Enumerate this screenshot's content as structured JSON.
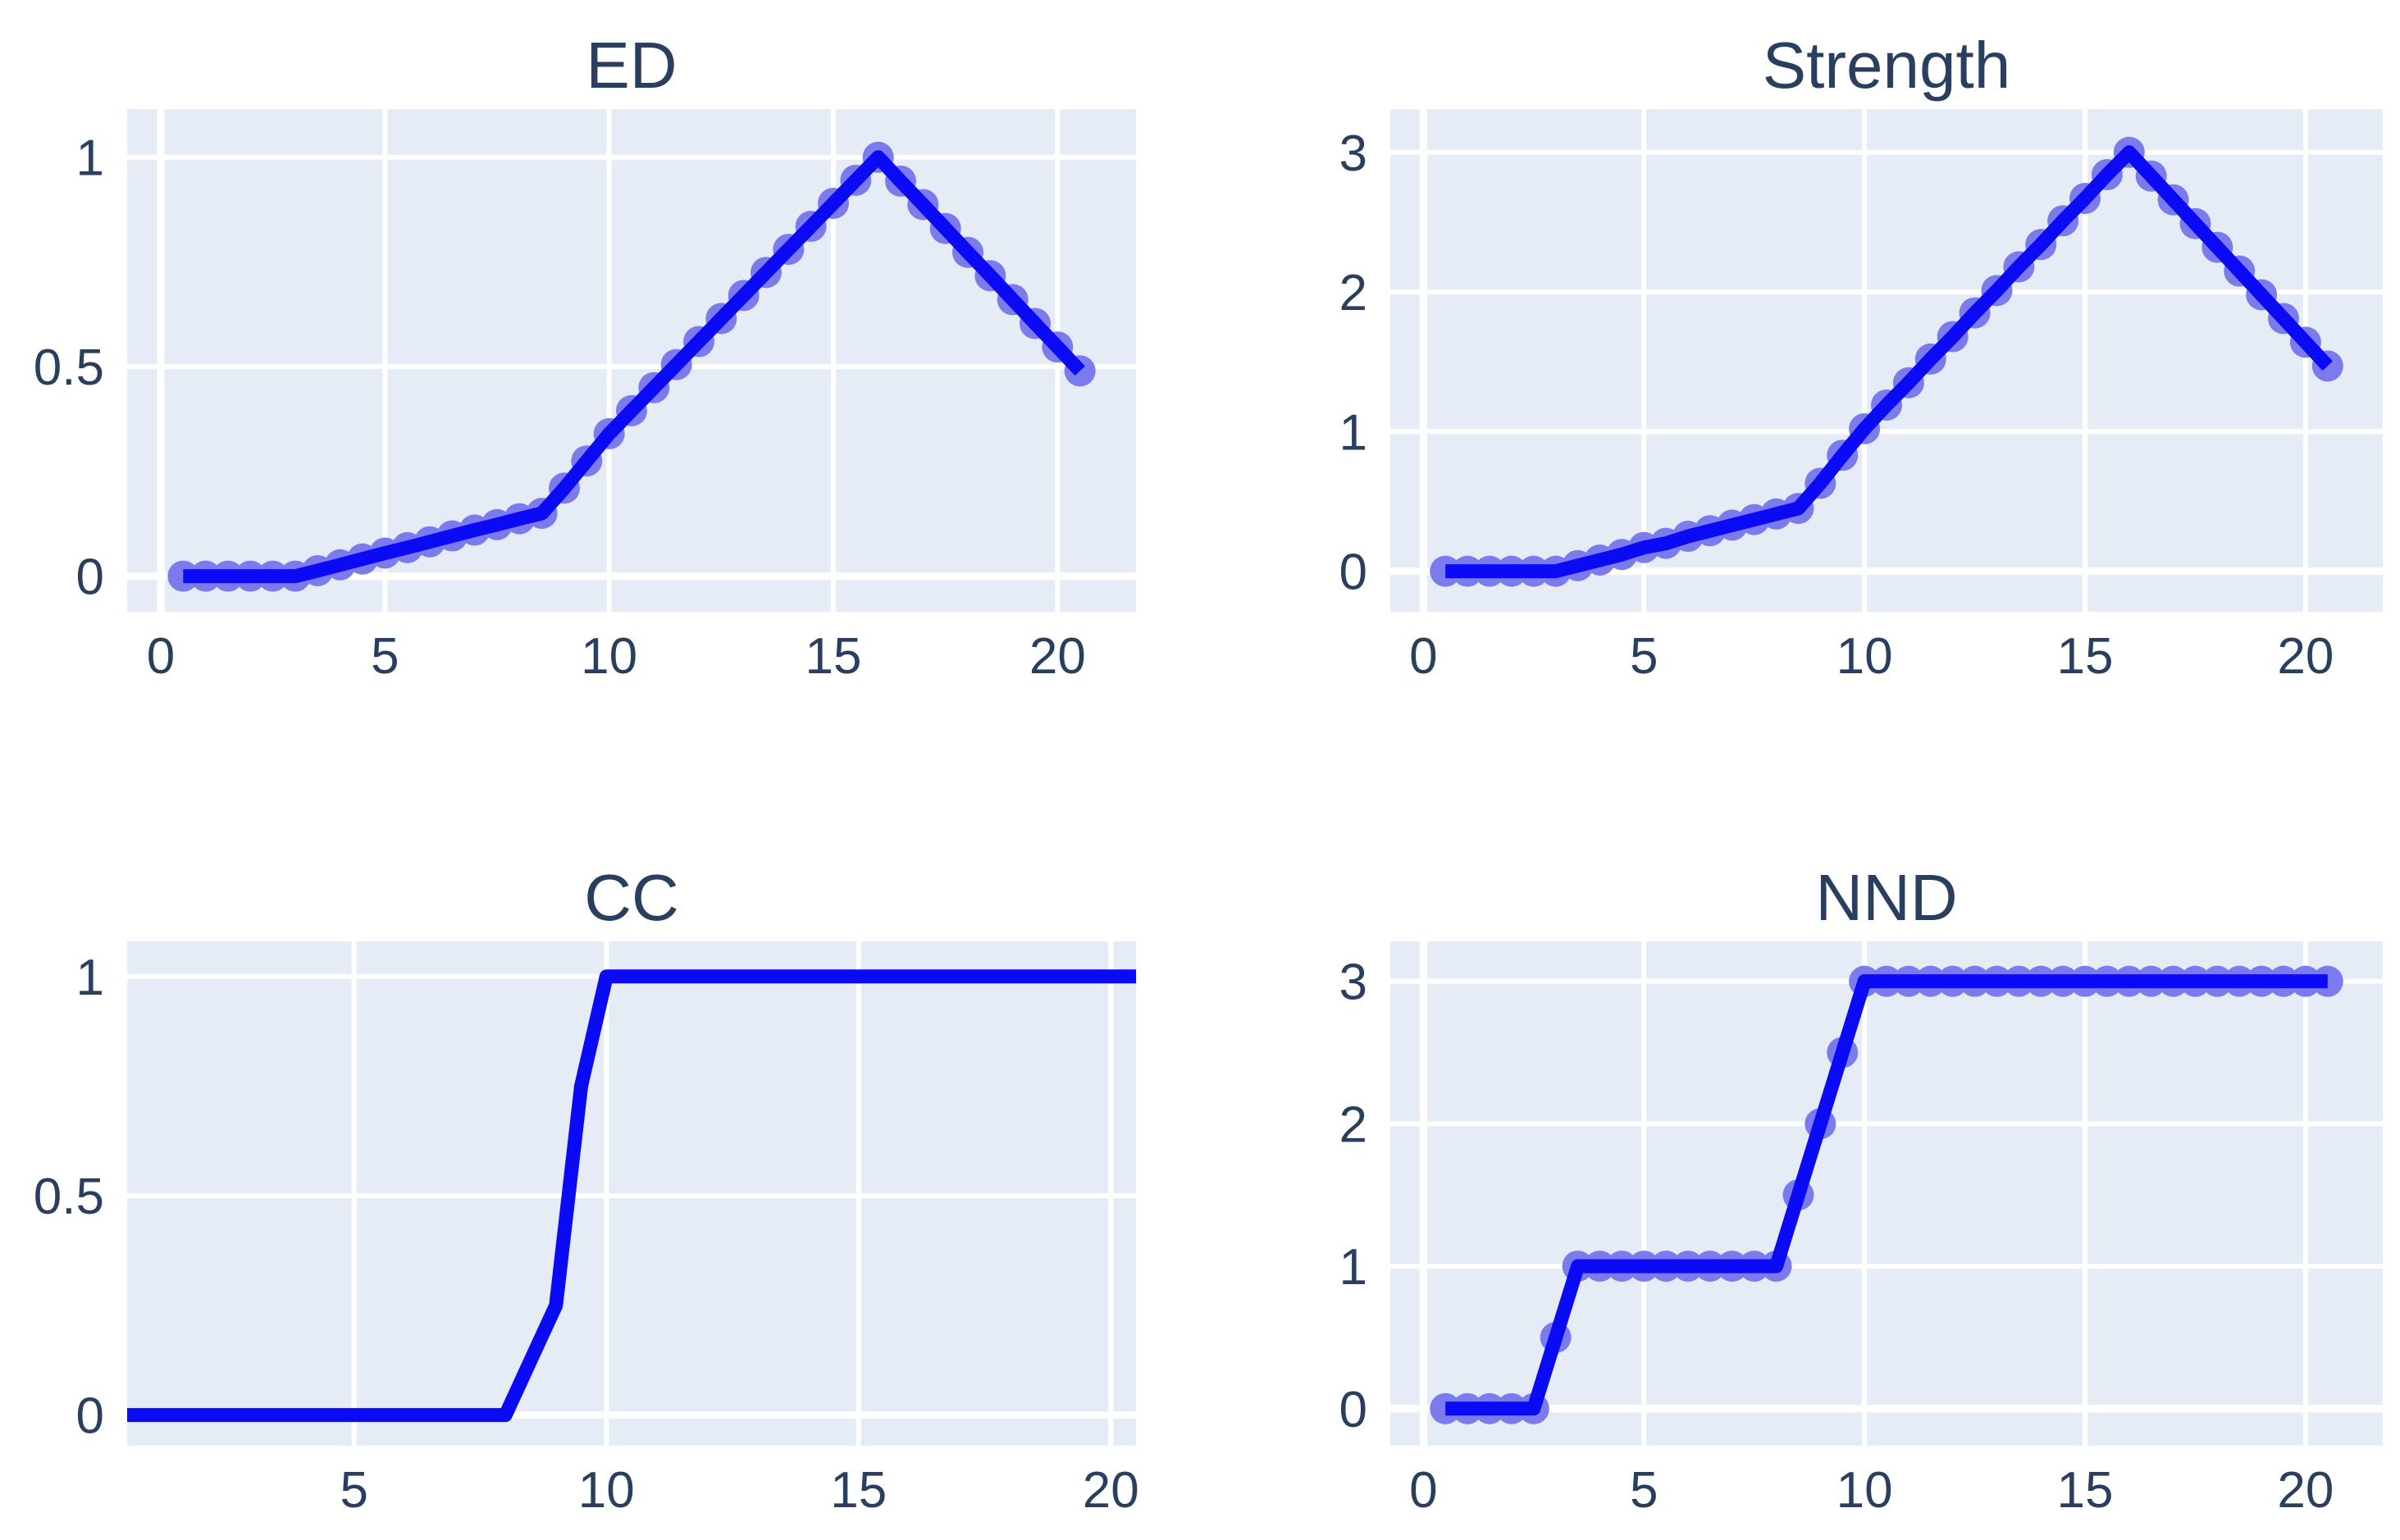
{
  "figure": {
    "background": "#FFFFFF"
  },
  "style": {
    "plot_background": "#E5ECF6",
    "gridline_color": "#FFFFFF",
    "line_color": "#0A0AF5",
    "marker_color": "#7B7BEE",
    "text_color": "#2A3F5F"
  },
  "chart_data": [
    {
      "type": "line",
      "title": "ED",
      "legend": "none",
      "grid": "on",
      "markers": true,
      "x_range": [
        -0.75,
        21.75
      ],
      "y_range": [
        -0.085,
        1.115
      ],
      "x_ticks": [
        0,
        5,
        10,
        15,
        20
      ],
      "x_tick_labels": [
        "0",
        "5",
        "10",
        "15",
        "20"
      ],
      "y_ticks": [
        0,
        0.5,
        1
      ],
      "y_tick_labels": [
        "0",
        "0.5",
        "1"
      ],
      "x": [
        0.5,
        1,
        1.5,
        2,
        2.5,
        3,
        3.5,
        4,
        4.5,
        5,
        5.5,
        6,
        6.5,
        7,
        7.5,
        8,
        8.5,
        9,
        9.5,
        10,
        10.5,
        11,
        11.5,
        12,
        12.5,
        13,
        13.5,
        14,
        14.5,
        15,
        15.5,
        16,
        16.5,
        17,
        17.5,
        18,
        18.5,
        19,
        19.5,
        20,
        20.5
      ],
      "y": [
        0,
        0,
        0,
        0,
        0,
        0,
        0.013,
        0.027,
        0.041,
        0.055,
        0.068,
        0.082,
        0.096,
        0.11,
        0.123,
        0.137,
        0.15,
        0.21,
        0.275,
        0.34,
        0.395,
        0.45,
        0.505,
        0.56,
        0.615,
        0.67,
        0.725,
        0.78,
        0.835,
        0.89,
        0.945,
        1.0,
        0.943,
        0.887,
        0.83,
        0.773,
        0.717,
        0.66,
        0.603,
        0.547,
        0.49
      ]
    },
    {
      "type": "line",
      "title": "Strength",
      "legend": "none",
      "grid": "on",
      "markers": true,
      "x_range": [
        -0.75,
        21.75
      ],
      "y_range": [
        -0.29,
        3.31
      ],
      "x_ticks": [
        0,
        5,
        10,
        15,
        20
      ],
      "x_tick_labels": [
        "0",
        "5",
        "10",
        "15",
        "20"
      ],
      "y_ticks": [
        0,
        1,
        2,
        3
      ],
      "y_tick_labels": [
        "0",
        "1",
        "2",
        "3"
      ],
      "x": [
        0.5,
        1,
        1.5,
        2,
        2.5,
        3,
        3.5,
        4,
        4.5,
        5,
        5.5,
        6,
        6.5,
        7,
        7.5,
        8,
        8.5,
        9,
        9.5,
        10,
        10.5,
        11,
        11.5,
        12,
        12.5,
        13,
        13.5,
        14,
        14.5,
        15,
        15.5,
        16,
        16.5,
        17,
        17.5,
        18,
        18.5,
        19,
        19.5,
        20,
        20.5
      ],
      "y": [
        0,
        0,
        0,
        0,
        0,
        0,
        0.04,
        0.08,
        0.12,
        0.17,
        0.2,
        0.25,
        0.29,
        0.33,
        0.37,
        0.41,
        0.45,
        0.63,
        0.83,
        1.02,
        1.19,
        1.35,
        1.52,
        1.68,
        1.85,
        2.01,
        2.18,
        2.34,
        2.51,
        2.67,
        2.84,
        3.0,
        2.83,
        2.66,
        2.49,
        2.32,
        2.15,
        1.98,
        1.81,
        1.64,
        1.47
      ]
    },
    {
      "type": "line",
      "title": "CC",
      "legend": "none",
      "grid": "on",
      "markers": false,
      "x_range": [
        0.5,
        20.5
      ],
      "y_range": [
        -0.07,
        1.08
      ],
      "x_ticks": [
        5,
        10,
        15,
        20
      ],
      "x_tick_labels": [
        "5",
        "10",
        "15",
        "20"
      ],
      "y_ticks": [
        0,
        0.5,
        1
      ],
      "y_tick_labels": [
        "0",
        "0.5",
        "1"
      ],
      "x": [
        0.5,
        1,
        1.5,
        2,
        2.5,
        3,
        3.5,
        4,
        4.5,
        5,
        5.5,
        6,
        6.5,
        7,
        7.5,
        8,
        8.5,
        9,
        9.5,
        10,
        10.5,
        11,
        11.5,
        12,
        12.5,
        13,
        13.5,
        14,
        14.5,
        15,
        15.5,
        16,
        16.5,
        17,
        17.5,
        18,
        18.5,
        19,
        19.5,
        20,
        20.5
      ],
      "y": [
        0,
        0,
        0,
        0,
        0,
        0,
        0,
        0,
        0,
        0,
        0,
        0,
        0,
        0,
        0,
        0,
        0.125,
        0.25,
        0.75,
        1,
        1,
        1,
        1,
        1,
        1,
        1,
        1,
        1,
        1,
        1,
        1,
        1,
        1,
        1,
        1,
        1,
        1,
        1,
        1,
        1,
        1
      ]
    },
    {
      "type": "line",
      "title": "NND",
      "legend": "none",
      "grid": "on",
      "markers": true,
      "x_range": [
        -0.75,
        21.75
      ],
      "y_range": [
        -0.26,
        3.28
      ],
      "x_ticks": [
        0,
        5,
        10,
        15,
        20
      ],
      "x_tick_labels": [
        "0",
        "5",
        "10",
        "15",
        "20"
      ],
      "y_ticks": [
        0,
        1,
        2,
        3
      ],
      "y_tick_labels": [
        "0",
        "1",
        "2",
        "3"
      ],
      "x": [
        0.5,
        1,
        1.5,
        2,
        2.5,
        3,
        3.5,
        4,
        4.5,
        5,
        5.5,
        6,
        6.5,
        7,
        7.5,
        8,
        8.5,
        9,
        9.5,
        10,
        10.5,
        11,
        11.5,
        12,
        12.5,
        13,
        13.5,
        14,
        14.5,
        15,
        15.5,
        16,
        16.5,
        17,
        17.5,
        18,
        18.5,
        19,
        19.5,
        20,
        20.5
      ],
      "y": [
        0,
        0,
        0,
        0,
        0,
        0.5,
        1,
        1,
        1,
        1,
        1,
        1,
        1,
        1,
        1,
        1,
        1.5,
        2,
        2.5,
        3,
        3,
        3,
        3,
        3,
        3,
        3,
        3,
        3,
        3,
        3,
        3,
        3,
        3,
        3,
        3,
        3,
        3,
        3,
        3,
        3,
        3
      ]
    }
  ]
}
